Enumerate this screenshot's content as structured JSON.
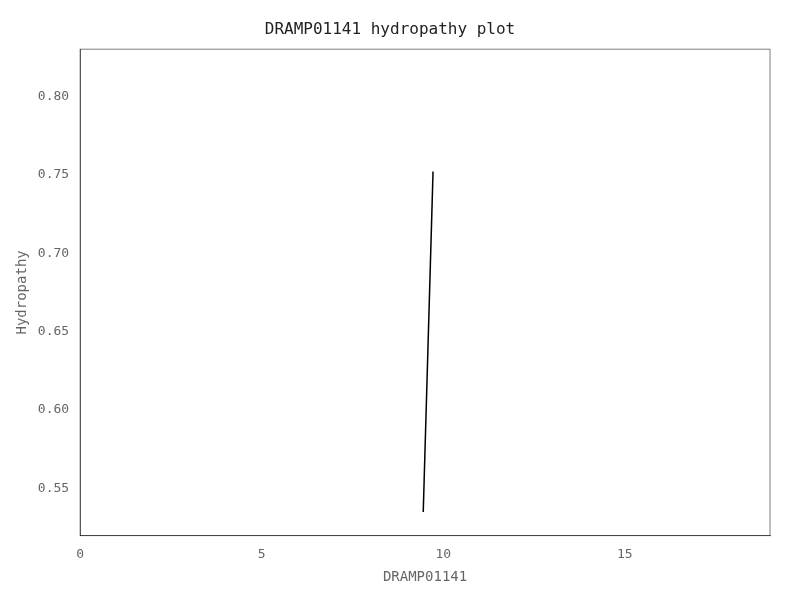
{
  "chart_data": {
    "type": "line",
    "title": "DRAMP01141 hydropathy plot",
    "xlabel": "DRAMP01141",
    "ylabel": "Hydropathy",
    "x": [
      9.45,
      9.72
    ],
    "values": [
      0.535,
      0.752
    ],
    "color": "#000000",
    "xlim": [
      0,
      19
    ],
    "xticks": [
      0,
      5,
      10,
      15
    ],
    "ylim": [
      0.52,
      0.83
    ],
    "yticks": [
      0.55,
      {
        "value": 0.6,
        "label": "0.60"
      },
      0.65,
      {
        "value": 0.7,
        "label": "0.70"
      },
      0.75,
      {
        "value": 0.8,
        "label": "0.80"
      }
    ],
    "grid": false
  }
}
